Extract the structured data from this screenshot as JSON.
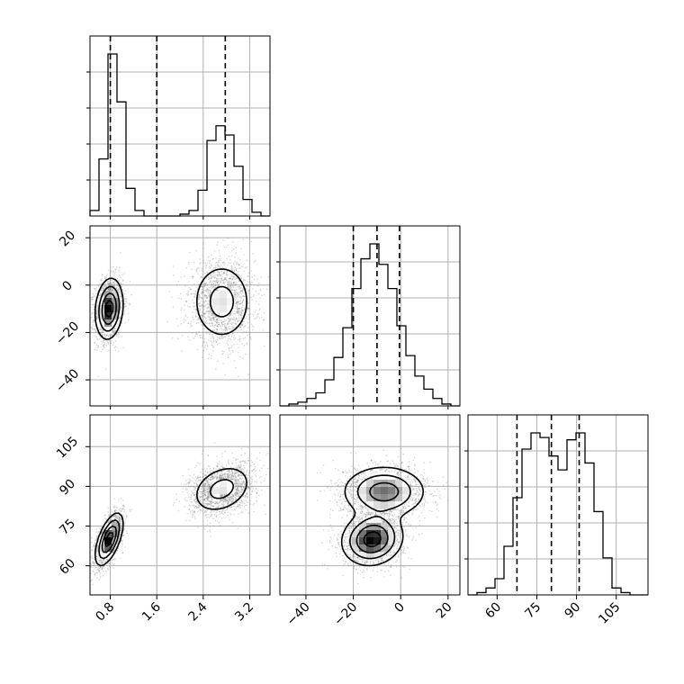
{
  "chart_data": {
    "type": "corner",
    "title": "",
    "grid": true,
    "params": [
      "",
      "",
      ""
    ],
    "colors": {
      "line": "#000000",
      "grid": "#b0b0b0",
      "scatter": "#6e6e6e",
      "background": "#ffffff"
    },
    "ranges": [
      [
        0.45,
        3.55
      ],
      [
        -51,
        25
      ],
      [
        49,
        117
      ]
    ],
    "ticks": [
      [
        "0.8",
        "1.6",
        "2.4",
        "3.2"
      ],
      [
        "−40",
        "−20",
        "0",
        "20"
      ],
      [
        "60",
        "75",
        "90",
        "105"
      ]
    ],
    "tick_values": [
      [
        0.8,
        1.6,
        2.4,
        3.2
      ],
      [
        -40,
        -20,
        0,
        20
      ],
      [
        60,
        75,
        90,
        105
      ]
    ],
    "histograms": [
      {
        "param": 0,
        "bin_edges": [
          0.45,
          0.605,
          0.76,
          0.915,
          1.07,
          1.225,
          1.38,
          1.535,
          1.69,
          1.845,
          2.0,
          2.155,
          2.31,
          2.465,
          2.62,
          2.775,
          2.93,
          3.085,
          3.24,
          3.395,
          3.55
        ],
        "counts": [
          0.03,
          0.31,
          0.88,
          0.62,
          0.15,
          0.03,
          0.0,
          0.0,
          0.0,
          0.0,
          0.01,
          0.03,
          0.14,
          0.41,
          0.49,
          0.44,
          0.27,
          0.09,
          0.02,
          0.0
        ],
        "quantile_lines": [
          0.8,
          1.6,
          2.78
        ]
      },
      {
        "param": 1,
        "bin_edges": [
          -51,
          -47.2,
          -43.4,
          -39.6,
          -35.8,
          -32,
          -28.2,
          -24.4,
          -20.6,
          -16.8,
          -13,
          -9.2,
          -5.4,
          -1.6,
          2.2,
          6,
          9.8,
          13.6,
          17.4,
          21.2,
          25
        ],
        "counts": [
          0.0,
          0.01,
          0.02,
          0.04,
          0.07,
          0.14,
          0.26,
          0.42,
          0.63,
          0.79,
          0.87,
          0.76,
          0.63,
          0.43,
          0.27,
          0.16,
          0.09,
          0.04,
          0.01,
          0.0
        ],
        "quantile_lines": [
          -20,
          -10,
          -0.5
        ]
      },
      {
        "param": 2,
        "bin_edges": [
          49,
          52.4,
          55.8,
          59.2,
          62.6,
          66,
          69.4,
          72.8,
          76.2,
          79.6,
          83,
          86.4,
          89.8,
          93.2,
          96.6,
          100,
          103.4,
          106.8,
          110.2,
          113.6,
          117
        ],
        "counts": [
          0.0,
          0.01,
          0.03,
          0.07,
          0.21,
          0.42,
          0.63,
          0.7,
          0.68,
          0.6,
          0.54,
          0.67,
          0.7,
          0.57,
          0.36,
          0.16,
          0.03,
          0.01,
          0.0,
          0.0
        ],
        "quantile_lines": [
          67.5,
          80.5,
          91.0
        ]
      }
    ],
    "clusters_2d": [
      {
        "x_param": 0,
        "y_param": 1,
        "components": [
          {
            "cx": 0.78,
            "cy": -10,
            "sx": 0.12,
            "sy": 6.5,
            "rho": 0.15,
            "weight": 1.0,
            "n": 1700
          },
          {
            "cx": 2.72,
            "cy": -7,
            "sx": 0.28,
            "sy": 9.0,
            "rho": 0.0,
            "weight": 0.45,
            "n": 1700
          }
        ]
      },
      {
        "x_param": 0,
        "y_param": 2,
        "components": [
          {
            "cx": 0.78,
            "cy": 70,
            "sx": 0.12,
            "sy": 5.0,
            "rho": 0.6,
            "weight": 1.0,
            "n": 1700
          },
          {
            "cx": 2.72,
            "cy": 89,
            "sx": 0.28,
            "sy": 5.0,
            "rho": 0.3,
            "weight": 0.45,
            "n": 1700
          }
        ]
      },
      {
        "x_param": 1,
        "y_param": 2,
        "components": [
          {
            "cx": -12,
            "cy": 70,
            "sx": 6.5,
            "sy": 5.0,
            "rho": 0.1,
            "weight": 1.0,
            "n": 1700
          },
          {
            "cx": -7,
            "cy": 88,
            "sx": 9.0,
            "sy": 5.0,
            "rho": 0.0,
            "weight": 0.75,
            "n": 1700
          }
        ]
      }
    ]
  }
}
